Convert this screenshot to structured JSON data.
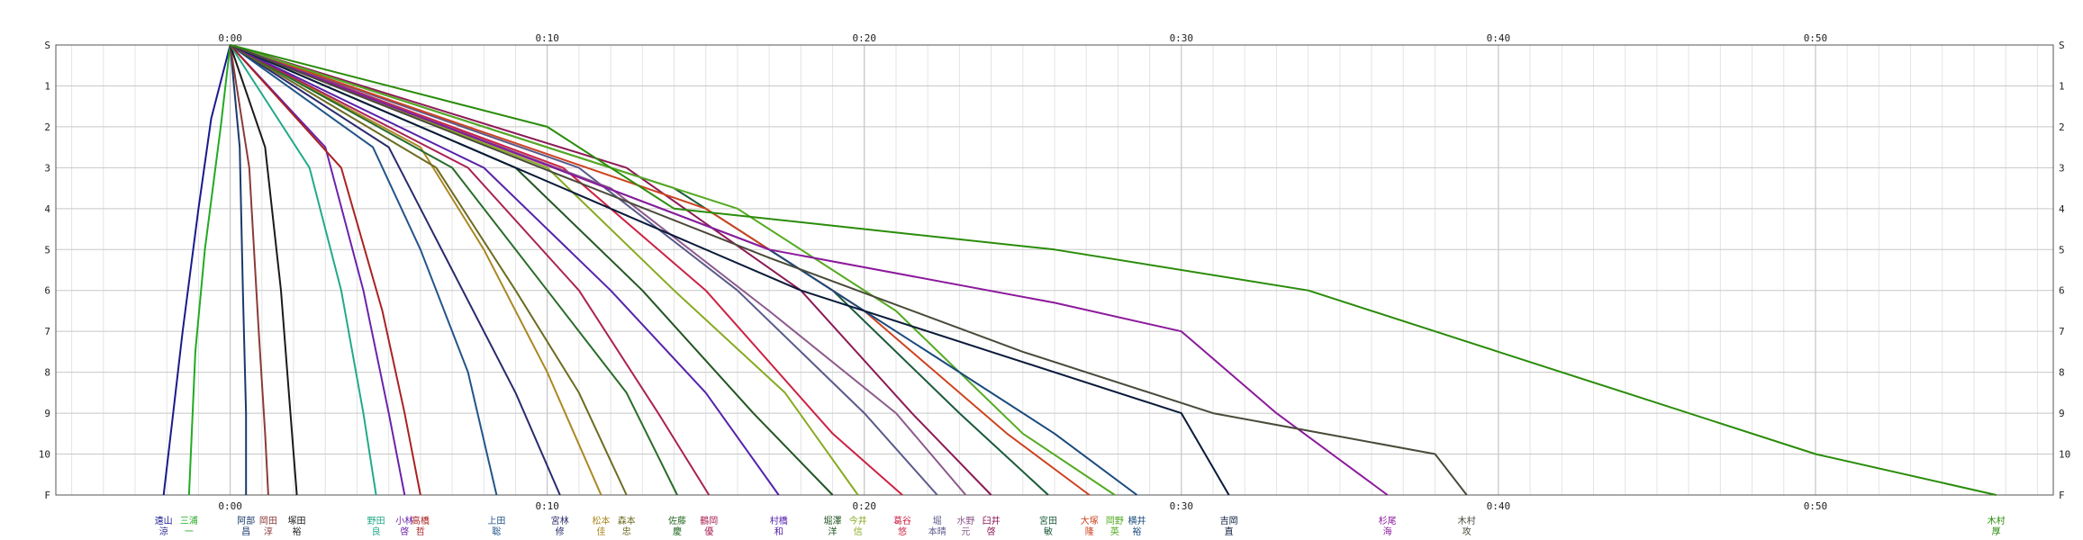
{
  "chart_data": {
    "type": "line",
    "title": "",
    "xlabel": "",
    "ylabel": "",
    "x_unit": "minutes",
    "xlim": [
      -5.5,
      57.5
    ],
    "x_ticks": [
      {
        "v": 0,
        "label": "0:00"
      },
      {
        "v": 10,
        "label": "0:10"
      },
      {
        "v": 20,
        "label": "0:20"
      },
      {
        "v": 30,
        "label": "0:30"
      },
      {
        "v": 40,
        "label": "0:40"
      },
      {
        "v": 50,
        "label": "0:50"
      }
    ],
    "y_ticks": [
      {
        "v": 0,
        "label": "S"
      },
      {
        "v": 1,
        "label": "1"
      },
      {
        "v": 2,
        "label": "2"
      },
      {
        "v": 3,
        "label": "3"
      },
      {
        "v": 4,
        "label": "4"
      },
      {
        "v": 5,
        "label": "5"
      },
      {
        "v": 6,
        "label": "6"
      },
      {
        "v": 7,
        "label": "7"
      },
      {
        "v": 8,
        "label": "8"
      },
      {
        "v": 9,
        "label": "9"
      },
      {
        "v": 10,
        "label": "10"
      },
      {
        "v": 11,
        "label": "F"
      }
    ],
    "grid": true,
    "series": [
      {
        "name": "遠山 涼",
        "color": "#1a1a8c",
        "values": [
          [
            0,
            0
          ],
          [
            -0.6,
            1.8
          ],
          [
            -1,
            4
          ],
          [
            -1.5,
            7
          ],
          [
            -1.8,
            9
          ],
          [
            -2.1,
            11
          ]
        ]
      },
      {
        "name": "三浦 一",
        "color": "#22aa22",
        "values": [
          [
            0,
            0
          ],
          [
            -0.3,
            2
          ],
          [
            -0.8,
            5
          ],
          [
            -1.1,
            7.5
          ],
          [
            -1.3,
            11
          ]
        ]
      },
      {
        "name": "阿部 昌",
        "color": "#1a3a6c",
        "values": [
          [
            0,
            0
          ],
          [
            0.3,
            2.5
          ],
          [
            0.4,
            6
          ],
          [
            0.5,
            9
          ],
          [
            0.5,
            11
          ]
        ]
      },
      {
        "name": "岡田 淳",
        "color": "#8c3a3a",
        "values": [
          [
            0,
            0
          ],
          [
            0.6,
            3
          ],
          [
            0.9,
            7
          ],
          [
            1.1,
            9.5
          ],
          [
            1.2,
            11
          ]
        ]
      },
      {
        "name": "塚田 裕",
        "color": "#1a1a1a",
        "values": [
          [
            0,
            0
          ],
          [
            1.1,
            2.5
          ],
          [
            1.6,
            6
          ],
          [
            1.9,
            9
          ],
          [
            2.1,
            11
          ]
        ]
      },
      {
        "name": "野田 良",
        "color": "#22aa88",
        "values": [
          [
            0,
            0
          ],
          [
            2.5,
            3
          ],
          [
            3.5,
            6
          ],
          [
            4.2,
            9
          ],
          [
            4.6,
            11
          ]
        ]
      },
      {
        "name": "小林 啓",
        "color": "#6c22aa",
        "values": [
          [
            0,
            0
          ],
          [
            3,
            2.5
          ],
          [
            4.2,
            6
          ],
          [
            5,
            9
          ],
          [
            5.5,
            11
          ]
        ]
      },
      {
        "name": "高橋 哲",
        "color": "#aa2222",
        "values": [
          [
            0,
            0
          ],
          [
            3.5,
            3
          ],
          [
            4.8,
            6.5
          ],
          [
            5.5,
            9
          ],
          [
            6,
            11
          ]
        ]
      },
      {
        "name": "上田 聡",
        "color": "#225588",
        "values": [
          [
            0,
            0
          ],
          [
            4.5,
            2.5
          ],
          [
            6,
            5
          ],
          [
            7.5,
            8
          ],
          [
            8.4,
            11
          ]
        ]
      },
      {
        "name": "宮林 修",
        "color": "#2a2a6c",
        "values": [
          [
            0,
            0
          ],
          [
            5,
            2.5
          ],
          [
            7,
            5.5
          ],
          [
            9,
            8.5
          ],
          [
            10.4,
            11
          ]
        ]
      },
      {
        "name": "松本 佳",
        "color": "#aa8822",
        "values": [
          [
            0,
            0
          ],
          [
            6,
            2.5
          ],
          [
            8,
            5
          ],
          [
            10,
            8
          ],
          [
            11.7,
            11
          ]
        ]
      },
      {
        "name": "森本 忠",
        "color": "#6c6c22",
        "values": [
          [
            0,
            0
          ],
          [
            6.5,
            3
          ],
          [
            9,
            6
          ],
          [
            11,
            8.5
          ],
          [
            12.5,
            11
          ]
        ]
      },
      {
        "name": "佐藤 慶",
        "color": "#2a6c2a",
        "values": [
          [
            0,
            0
          ],
          [
            7,
            3
          ],
          [
            10,
            6
          ],
          [
            12.5,
            8.5
          ],
          [
            14.1,
            11
          ]
        ]
      },
      {
        "name": "鶴岡 優",
        "color": "#aa2255",
        "values": [
          [
            0,
            0
          ],
          [
            7.5,
            3
          ],
          [
            11,
            6
          ],
          [
            13.5,
            9
          ],
          [
            15.1,
            11
          ]
        ]
      },
      {
        "name": "村橋 和",
        "color": "#5522aa",
        "values": [
          [
            0,
            0
          ],
          [
            8,
            3
          ],
          [
            12,
            6
          ],
          [
            15,
            8.5
          ],
          [
            17.3,
            11
          ]
        ]
      },
      {
        "name": "堀澤 洋",
        "color": "#225522",
        "values": [
          [
            0,
            0
          ],
          [
            9,
            3
          ],
          [
            13,
            6
          ],
          [
            16.5,
            9
          ],
          [
            19,
            11
          ]
        ]
      },
      {
        "name": "今井 信",
        "color": "#88aa22",
        "values": [
          [
            0,
            0
          ],
          [
            10,
            3
          ],
          [
            14,
            6
          ],
          [
            17.5,
            8.5
          ],
          [
            19.8,
            11
          ]
        ]
      },
      {
        "name": "葛谷 悠",
        "color": "#cc2244",
        "values": [
          [
            0,
            0
          ],
          [
            10.5,
            3
          ],
          [
            15,
            6
          ],
          [
            19,
            9.5
          ],
          [
            21.2,
            11
          ]
        ]
      },
      {
        "name": "堀 本晴",
        "color": "#5a5a8c",
        "values": [
          [
            0,
            0
          ],
          [
            11,
            3
          ],
          [
            16,
            6
          ],
          [
            20,
            9
          ],
          [
            22.3,
            11
          ]
        ]
      },
      {
        "name": "水野 元",
        "color": "#8c5a8c",
        "values": [
          [
            0,
            0
          ],
          [
            12,
            3.5
          ],
          [
            17,
            6.5
          ],
          [
            21,
            9
          ],
          [
            23.2,
            11
          ]
        ]
      },
      {
        "name": "臼井 啓",
        "color": "#8c1a55",
        "values": [
          [
            0,
            0
          ],
          [
            12.5,
            3
          ],
          [
            18,
            6
          ],
          [
            21.5,
            9
          ],
          [
            24,
            11
          ]
        ]
      },
      {
        "name": "宮田 敏",
        "color": "#1a5a3a",
        "values": [
          [
            0,
            0
          ],
          [
            14,
            3.5
          ],
          [
            19,
            6
          ],
          [
            23,
            9
          ],
          [
            25.8,
            11
          ]
        ]
      },
      {
        "name": "大塚 隆",
        "color": "#cc4422",
        "values": [
          [
            0,
            0
          ],
          [
            15,
            4
          ],
          [
            20,
            6.5
          ],
          [
            24.5,
            9.5
          ],
          [
            27.1,
            11
          ]
        ]
      },
      {
        "name": "岡野 英",
        "color": "#55aa22",
        "values": [
          [
            0,
            0
          ],
          [
            16,
            4
          ],
          [
            21,
            6.5
          ],
          [
            25,
            9.5
          ],
          [
            27.9,
            11
          ]
        ]
      },
      {
        "name": "横井 裕",
        "color": "#1a4a7c",
        "values": [
          [
            0,
            0
          ],
          [
            17,
            5
          ],
          [
            22,
            7.5
          ],
          [
            26,
            9.5
          ],
          [
            28.6,
            11
          ]
        ]
      },
      {
        "name": "吉岡 直",
        "color": "#0a1a3a",
        "values": [
          [
            0,
            0
          ],
          [
            18,
            6
          ],
          [
            24,
            7.5
          ],
          [
            30,
            9
          ],
          [
            31.5,
            11
          ]
        ]
      },
      {
        "name": "杉尾 海",
        "color": "#8c1a9c",
        "values": [
          [
            0,
            0
          ],
          [
            17,
            5
          ],
          [
            26,
            6.3
          ],
          [
            30,
            7
          ],
          [
            33,
            9
          ],
          [
            36.5,
            11
          ]
        ]
      },
      {
        "name": "木村 攻",
        "color": "#4a4a3a",
        "values": [
          [
            0,
            0
          ],
          [
            17,
            5.2
          ],
          [
            25,
            7.5
          ],
          [
            31,
            9
          ],
          [
            38,
            10
          ],
          [
            39,
            11
          ]
        ]
      },
      {
        "name": "木村 厚",
        "color": "#2a8c0a",
        "values": [
          [
            0,
            0
          ],
          [
            10,
            2
          ],
          [
            14,
            4
          ],
          [
            26,
            5
          ],
          [
            34,
            6
          ],
          [
            40,
            7.5
          ],
          [
            50,
            10
          ],
          [
            55.7,
            11
          ]
        ]
      }
    ]
  }
}
